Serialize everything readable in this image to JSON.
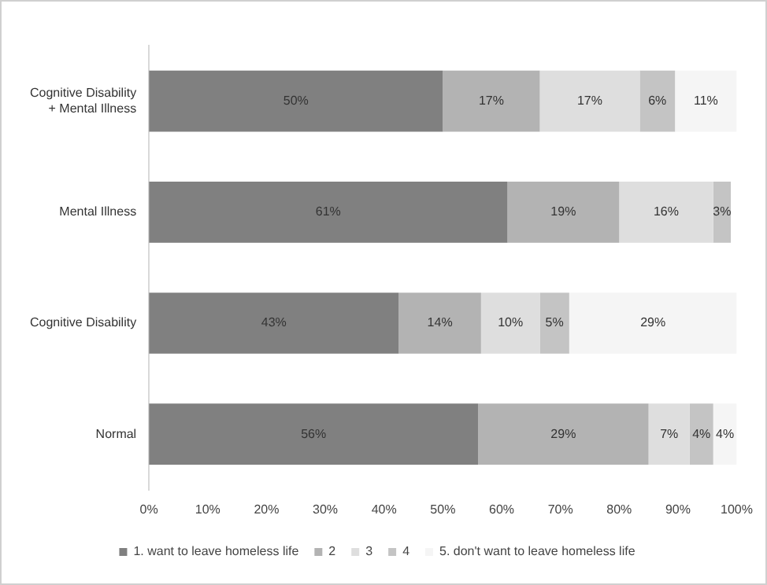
{
  "chart_data": {
    "type": "bar",
    "orientation": "horizontal",
    "stacked": true,
    "categories": [
      "Cognitive Disability\n+ Mental Illness",
      "Mental Illness",
      "Cognitive Disability",
      "Normal"
    ],
    "series": [
      {
        "name": "1. want to leave homeless life",
        "color": "#808080",
        "values": [
          50,
          61,
          42.5,
          56
        ],
        "value_labels": [
          "50%",
          "61%",
          "43%",
          "56%"
        ]
      },
      {
        "name": "2",
        "color": "#b3b3b3",
        "values": [
          16.5,
          19,
          14,
          29
        ],
        "value_labels": [
          "17%",
          "19%",
          "14%",
          "29%"
        ]
      },
      {
        "name": "3",
        "color": "#dedede",
        "values": [
          17,
          16,
          10,
          7
        ],
        "value_labels": [
          "17%",
          "16%",
          "10%",
          "7%"
        ]
      },
      {
        "name": "4",
        "color": "#c4c4c4",
        "values": [
          6,
          3,
          5,
          4
        ],
        "value_labels": [
          "6%",
          "3%",
          "5%",
          "4%"
        ]
      },
      {
        "name": "5. don't want to leave homeless life",
        "color": "#f5f5f5",
        "values": [
          10.5,
          null,
          28.5,
          4
        ],
        "value_labels": [
          "11%",
          null,
          "29%",
          "4%"
        ]
      }
    ],
    "xlim": [
      0,
      100
    ],
    "xticks": [
      {
        "value": 0,
        "label": "0%"
      },
      {
        "value": 10,
        "label": "10%"
      },
      {
        "value": 20,
        "label": "20%"
      },
      {
        "value": 30,
        "label": "30%"
      },
      {
        "value": 40,
        "label": "40%"
      },
      {
        "value": 50,
        "label": "50%"
      },
      {
        "value": 60,
        "label": "60%"
      },
      {
        "value": 70,
        "label": "70%"
      },
      {
        "value": 80,
        "label": "80%"
      },
      {
        "value": 90,
        "label": "90%"
      },
      {
        "value": 100,
        "label": "100%"
      }
    ],
    "grid": false,
    "legend": "bottom"
  }
}
